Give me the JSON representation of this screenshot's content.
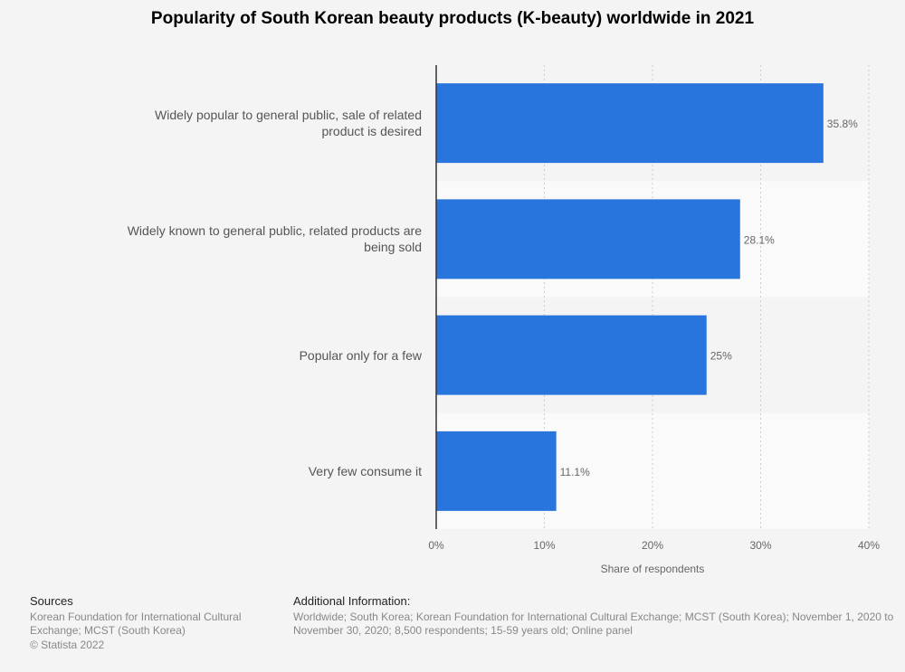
{
  "chart_data": {
    "type": "bar",
    "orientation": "horizontal",
    "title": "Popularity of South Korean beauty products (K-beauty) worldwide in 2021",
    "categories": [
      "Widely popular to general public, sale of related product is desired",
      "Widely known to general public, related products are being sold",
      "Popular only for a few",
      "Very few consume it"
    ],
    "values": [
      35.8,
      28.1,
      25,
      11.1
    ],
    "value_labels": [
      "35.8%",
      "28.1%",
      "25%",
      "11.1%"
    ],
    "color": "#2876dd",
    "xlabel": "Share of respondents",
    "xlim": [
      0,
      40
    ],
    "xticks": [
      {
        "value": 0,
        "label": "0%"
      },
      {
        "value": 10,
        "label": "10%"
      },
      {
        "value": 20,
        "label": "20%"
      },
      {
        "value": 30,
        "label": "30%"
      },
      {
        "value": 40,
        "label": "40%"
      }
    ],
    "grid": true
  },
  "footer": {
    "sources_title": "Sources",
    "sources": "Korean Foundation for International Cultural Exchange; MCST (South Korea)",
    "copyright": "© Statista 2022",
    "info_title": "Additional Information:",
    "info": "Worldwide; South Korea; Korean Foundation for International Cultural Exchange; MCST (South Korea); November 1, 2020 to November 30, 2020; 8,500 respondents; 15-59 years old; Online panel"
  }
}
